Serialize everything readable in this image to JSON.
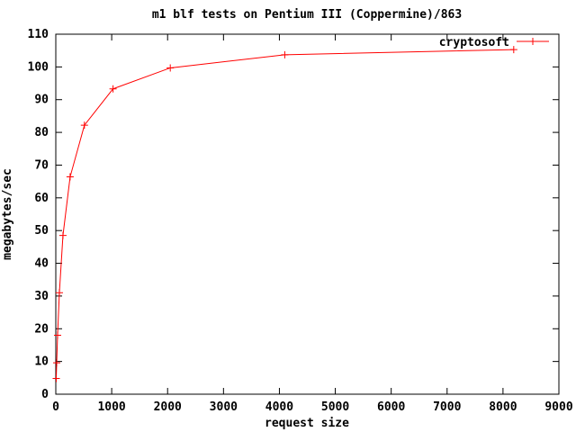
{
  "window": {
    "background": "#ffffff",
    "foreground": "#000000"
  },
  "chart_data": {
    "type": "line",
    "title": "m1 blf tests on Pentium III (Coppermine)/863",
    "xlabel": "request size",
    "ylabel": "megabytes/sec",
    "xlim": [
      0,
      9000
    ],
    "ylim": [
      0,
      110
    ],
    "x_ticks": [
      0,
      1000,
      2000,
      3000,
      4000,
      5000,
      6000,
      7000,
      8000,
      9000
    ],
    "y_ticks": [
      0,
      10,
      20,
      30,
      40,
      50,
      60,
      70,
      80,
      90,
      100,
      110
    ],
    "grid": false,
    "legend_position": "top-right-inside",
    "series": [
      {
        "name": "cryptosoft",
        "color": "#ff0000",
        "marker": "plus",
        "x": [
          8,
          16,
          32,
          64,
          128,
          256,
          512,
          1024,
          2048,
          4096,
          8192
        ],
        "y": [
          4.8,
          9.6,
          18.0,
          31.0,
          48.5,
          66.4,
          82.2,
          93.3,
          99.7,
          103.7,
          105.3
        ]
      }
    ]
  }
}
